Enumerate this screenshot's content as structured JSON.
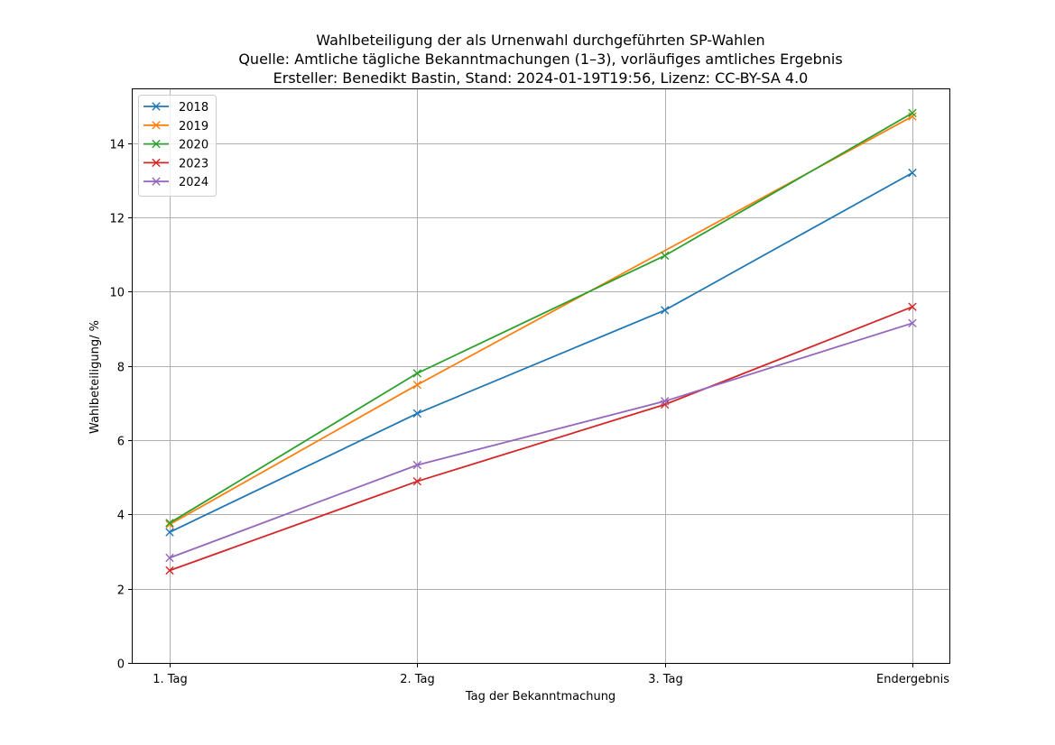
{
  "chart_data": {
    "type": "line",
    "title_lines": [
      "Wahlbeteiligung der als Urnenwahl durchgeführten SP-Wahlen",
      "Quelle: Amtliche tägliche Bekanntmachungen (1–3), vorläufiges amtliches Ergebnis",
      "Ersteller: Benedikt Bastin, Stand: 2024-01-19T19:56, Lizenz: CC-BY-SA 4.0"
    ],
    "xlabel": "Tag der Bekanntmachung",
    "ylabel": "Wahlbeteiligung/ %",
    "categories": [
      "1. Tag",
      "2. Tag",
      "3. Tag",
      "Endergebnis"
    ],
    "yticks": [
      0,
      2,
      4,
      6,
      8,
      10,
      12,
      14
    ],
    "ylim": [
      0,
      15.45
    ],
    "grid": true,
    "marker": "x",
    "legend_position": "top-left",
    "series": [
      {
        "name": "2018",
        "color": "#1f77b4",
        "values": [
          3.52,
          6.72,
          9.5,
          13.2
        ]
      },
      {
        "name": "2019",
        "color": "#ff7f0e",
        "values": [
          3.73,
          7.49,
          null,
          14.72
        ]
      },
      {
        "name": "2020",
        "color": "#2ca02c",
        "values": [
          3.77,
          7.8,
          10.97,
          14.81
        ]
      },
      {
        "name": "2023",
        "color": "#d62728",
        "values": [
          2.49,
          4.89,
          6.96,
          9.59
        ]
      },
      {
        "name": "2024",
        "color": "#9467bd",
        "values": [
          2.83,
          5.33,
          7.05,
          9.15
        ]
      }
    ]
  }
}
